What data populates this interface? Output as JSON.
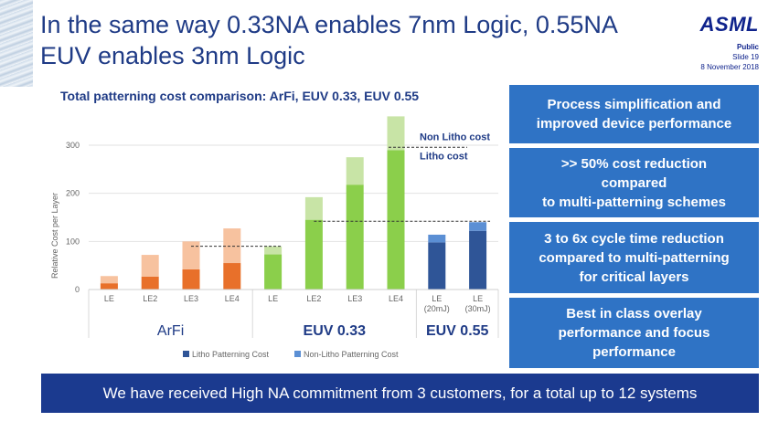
{
  "title_lines": [
    "In the same way 0.33NA enables 7nm Logic, 0.55NA",
    "EUV enables 3nm Logic"
  ],
  "logo": "ASML",
  "meta": {
    "classification": "Public",
    "slide": "Slide 19",
    "date": "8 November 2018"
  },
  "chart_title": "Total patterning cost comparison: ArFi, EUV 0.33, EUV 0.55",
  "chart_data": {
    "type": "bar",
    "stacked": true,
    "ylabel": "Relative Cost per Layer",
    "ylim": [
      0,
      350
    ],
    "yticks": [
      0,
      100,
      200,
      300
    ],
    "grid": true,
    "categories": [
      "LE",
      "LE2",
      "LE3",
      "LE4",
      "LE",
      "LE2",
      "LE3",
      "LE4",
      "LE\n(20mJ)",
      "LE\n(30mJ)"
    ],
    "groups": [
      {
        "label": "ArFi",
        "start": 0,
        "end": 3,
        "bold": false
      },
      {
        "label": "EUV 0.33",
        "start": 4,
        "end": 7,
        "bold": true
      },
      {
        "label": "EUV 0.55",
        "start": 8,
        "end": 9,
        "bold": true
      }
    ],
    "series": [
      {
        "name": "Litho Patterning Cost",
        "values": [
          13,
          27,
          42,
          55,
          73,
          145,
          218,
          290,
          98,
          122
        ]
      },
      {
        "name": "Non-Litho Patterning Cost",
        "values": [
          15,
          45,
          58,
          72,
          17,
          47,
          57,
          70,
          16,
          18
        ]
      }
    ],
    "colors": {
      "arfi": [
        "#e8702a",
        "#f7c29f"
      ],
      "euv033": [
        "#8bcf4b",
        "#c8e4a6"
      ],
      "euv055": [
        "#2f5597",
        "#5b8fd4"
      ],
      "legend": [
        "#2f5597",
        "#5b8fd4"
      ]
    },
    "annotations": [
      "Non Litho cost",
      "Litho cost"
    ],
    "reference_lines": [
      90,
      142
    ]
  },
  "panels": [
    {
      "lines": [
        "Process simplification and",
        "improved device performance"
      ]
    },
    {
      "lines": [
        ">> 50% cost reduction",
        "compared",
        "to multi-patterning schemes"
      ]
    },
    {
      "lines": [
        "3 to 6x cycle time reduction",
        "compared to multi-patterning",
        "for critical layers"
      ]
    },
    {
      "lines": [
        "Best in class overlay",
        "performance and focus",
        "performance"
      ]
    }
  ],
  "banner": "We have received High NA commitment from 3 customers, for a total up to 12 systems"
}
